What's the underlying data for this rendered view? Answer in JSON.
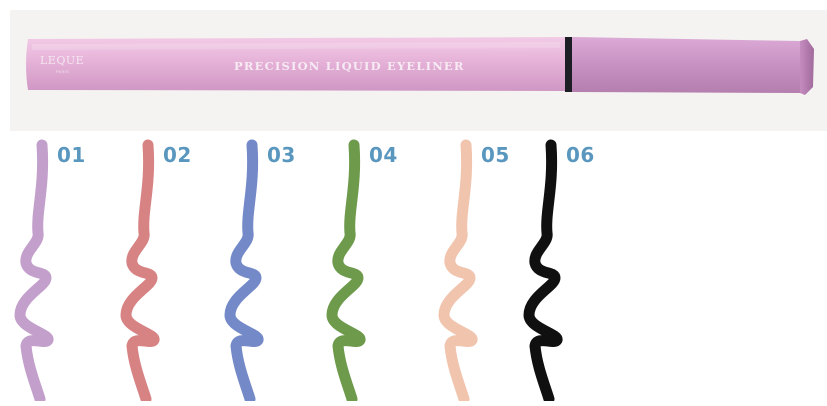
{
  "product": {
    "brand": "LEQUE",
    "brand_sub": "PARIS",
    "name": "PRECISION LIQUID EYELINER",
    "body_color": "#e4aed6",
    "cap_color": "#c98fc1",
    "band_color": "#1d1d26"
  },
  "label_color": "#5a97be",
  "swatches": [
    {
      "number": "01",
      "color": "#c3a0cb"
    },
    {
      "number": "02",
      "color": "#d78384"
    },
    {
      "number": "03",
      "color": "#7489c7"
    },
    {
      "number": "04",
      "color": "#6e9a4c"
    },
    {
      "number": "05",
      "color": "#f1c4ae"
    },
    {
      "number": "06",
      "color": "#101010"
    }
  ]
}
